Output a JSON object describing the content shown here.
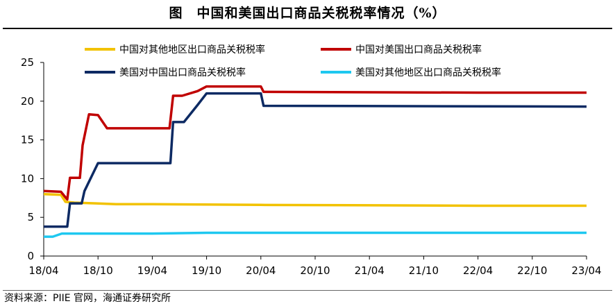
{
  "chart_data": {
    "type": "line",
    "title": "图　中国和美国出口商品关税税率情况（%）",
    "xlabel": "",
    "ylabel": "",
    "ylim": [
      0,
      25
    ],
    "yticks": [
      0,
      5,
      10,
      15,
      20,
      25
    ],
    "xlim": [
      "2018-04",
      "2023-04"
    ],
    "xticks": [
      "18/04",
      "18/10",
      "19/04",
      "19/10",
      "20/04",
      "20/10",
      "21/04",
      "21/10",
      "22/04",
      "22/10",
      "23/04"
    ],
    "grid": false,
    "legend": "top",
    "series": [
      {
        "name": "中国对其他地区出口商品关税税率",
        "color": "#F2C200",
        "points": [
          [
            0,
            8.0
          ],
          [
            1.9,
            7.9
          ],
          [
            2.4,
            7.0
          ],
          [
            3.4,
            6.9
          ],
          [
            5.8,
            6.8
          ],
          [
            8,
            6.7
          ],
          [
            12,
            6.7
          ],
          [
            24,
            6.6
          ],
          [
            48,
            6.5
          ],
          [
            60,
            6.5
          ]
        ]
      },
      {
        "name": "中国对美国出口商品关税税率",
        "color": "#C00000",
        "points": [
          [
            0,
            8.4
          ],
          [
            1.9,
            8.3
          ],
          [
            2.6,
            7.3
          ],
          [
            2.9,
            10.1
          ],
          [
            4.0,
            10.1
          ],
          [
            4.3,
            14.3
          ],
          [
            5.0,
            18.3
          ],
          [
            6.0,
            18.2
          ],
          [
            7.0,
            16.5
          ],
          [
            8.0,
            16.5
          ],
          [
            13.9,
            16.5
          ],
          [
            14.3,
            20.7
          ],
          [
            15.3,
            20.7
          ],
          [
            17.0,
            21.3
          ],
          [
            18.0,
            21.9
          ],
          [
            24.0,
            21.9
          ],
          [
            24.3,
            21.2
          ],
          [
            48,
            21.1
          ],
          [
            60,
            21.1
          ]
        ]
      },
      {
        "name": "美国对中国出口商品关税税率",
        "color": "#0D2A63",
        "points": [
          [
            0,
            3.8
          ],
          [
            2.6,
            3.8
          ],
          [
            2.9,
            6.8
          ],
          [
            4.2,
            6.8
          ],
          [
            4.5,
            8.4
          ],
          [
            6.0,
            12.0
          ],
          [
            14.0,
            12.0
          ],
          [
            14.3,
            17.3
          ],
          [
            15.5,
            17.3
          ],
          [
            17.0,
            19.5
          ],
          [
            18.0,
            21.0
          ],
          [
            24.0,
            21.0
          ],
          [
            24.3,
            19.4
          ],
          [
            60,
            19.3
          ]
        ]
      },
      {
        "name": "美国对其他地区出口商品关税税率",
        "color": "#1EC8F0",
        "points": [
          [
            0,
            2.5
          ],
          [
            1.0,
            2.5
          ],
          [
            2.0,
            2.9
          ],
          [
            4.0,
            2.9
          ],
          [
            12.0,
            2.9
          ],
          [
            18.0,
            3.0
          ],
          [
            60,
            3.0
          ]
        ]
      }
    ]
  },
  "source": "资料来源：PIIE 官网，海通证券研究所"
}
